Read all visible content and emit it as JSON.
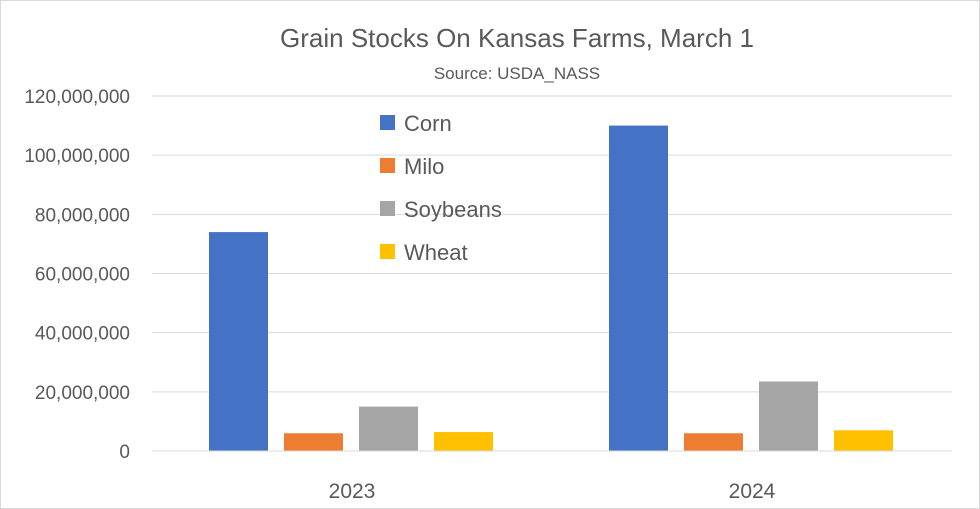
{
  "chart_data": {
    "type": "bar",
    "title": "Grain Stocks On Kansas Farms, March 1",
    "subtitle": "Source: USDA_NASS",
    "xlabel": "",
    "ylabel": "",
    "categories": [
      "2023",
      "2024"
    ],
    "series": [
      {
        "name": "Corn",
        "color": "#4472c4",
        "values": [
          74000000,
          110000000
        ]
      },
      {
        "name": "Milo",
        "color": "#ed7d31",
        "values": [
          6000000,
          6000000
        ]
      },
      {
        "name": "Soybeans",
        "color": "#a5a5a5",
        "values": [
          15000000,
          23500000
        ]
      },
      {
        "name": "Wheat",
        "color": "#ffc000",
        "values": [
          6400000,
          7000000
        ]
      }
    ],
    "ylim": [
      0,
      120000000
    ],
    "yticks": [
      0,
      20000000,
      40000000,
      60000000,
      80000000,
      100000000,
      120000000
    ],
    "ytick_labels": [
      "0",
      "20,000,000",
      "40,000,000",
      "60,000,000",
      "80,000,000",
      "100,000,000",
      "120,000,000"
    ],
    "grid": true,
    "legend_position": "top-left inside plot"
  }
}
